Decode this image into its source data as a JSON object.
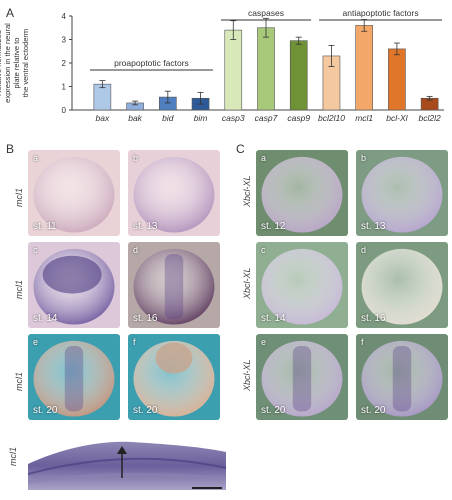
{
  "figure": {
    "panel_labels": {
      "A": "A",
      "B": "B",
      "C": "C"
    },
    "chart_data": {
      "type": "bar",
      "ylabel": "Relative normalized expression in the neural plate relative to the ventral ectoderm",
      "ylim": [
        0,
        4
      ],
      "yticks": [
        "0",
        "1",
        "2",
        "3",
        "4"
      ],
      "categories": [
        "bax",
        "bak",
        "bid",
        "bim",
        "casp3",
        "casp7",
        "casp9",
        "bcl2l10",
        "mcl1",
        "bcl-Xl",
        "bcl2l2"
      ],
      "values": [
        1.1,
        0.3,
        0.55,
        0.5,
        3.4,
        3.5,
        2.95,
        2.3,
        3.6,
        2.6,
        0.5
      ],
      "errors": [
        0.15,
        0.08,
        0.25,
        0.25,
        0.4,
        0.4,
        0.15,
        0.45,
        0.25,
        0.25,
        0.08
      ],
      "colors": [
        "#aec8e8",
        "#8faedb",
        "#4f7fc0",
        "#2e5b97",
        "#d8e8b8",
        "#a8c97a",
        "#6f9236",
        "#f4c9a0",
        "#f3a86a",
        "#e0762a",
        "#a84a1c"
      ],
      "groups": [
        {
          "label": "proapoptotic factors",
          "from": 0,
          "to": 3
        },
        {
          "label": "caspases",
          "from": 4,
          "to": 6
        },
        {
          "label": "antiapoptotic factors",
          "from": 7,
          "to": 10
        }
      ]
    },
    "panel_B": {
      "tiles": [
        {
          "letter": "a",
          "stage": "st. 11"
        },
        {
          "letter": "b",
          "stage": "st. 13"
        },
        {
          "letter": "c",
          "stage": "st. 14"
        },
        {
          "letter": "d",
          "stage": "st. 16"
        },
        {
          "letter": "e",
          "stage": "st. 20"
        },
        {
          "letter": "f",
          "stage": "st. 20"
        }
      ],
      "row_labels": [
        "mcl1",
        "mcl1",
        "mcl1"
      ]
    },
    "panel_C": {
      "tiles": [
        {
          "letter": "a",
          "stage": "st. 12"
        },
        {
          "letter": "b",
          "stage": "st. 13"
        },
        {
          "letter": "c",
          "stage": "st. 14"
        },
        {
          "letter": "d",
          "stage": "st. 16"
        },
        {
          "letter": "e",
          "stage": "st. 20"
        },
        {
          "letter": "f",
          "stage": "st. 20"
        }
      ],
      "row_labels": [
        "Xbcl-XL",
        "Xbcl-XL",
        "Xbcl-XL"
      ]
    },
    "panel_g": {
      "letter": "g",
      "row_label": "mcl1"
    }
  }
}
